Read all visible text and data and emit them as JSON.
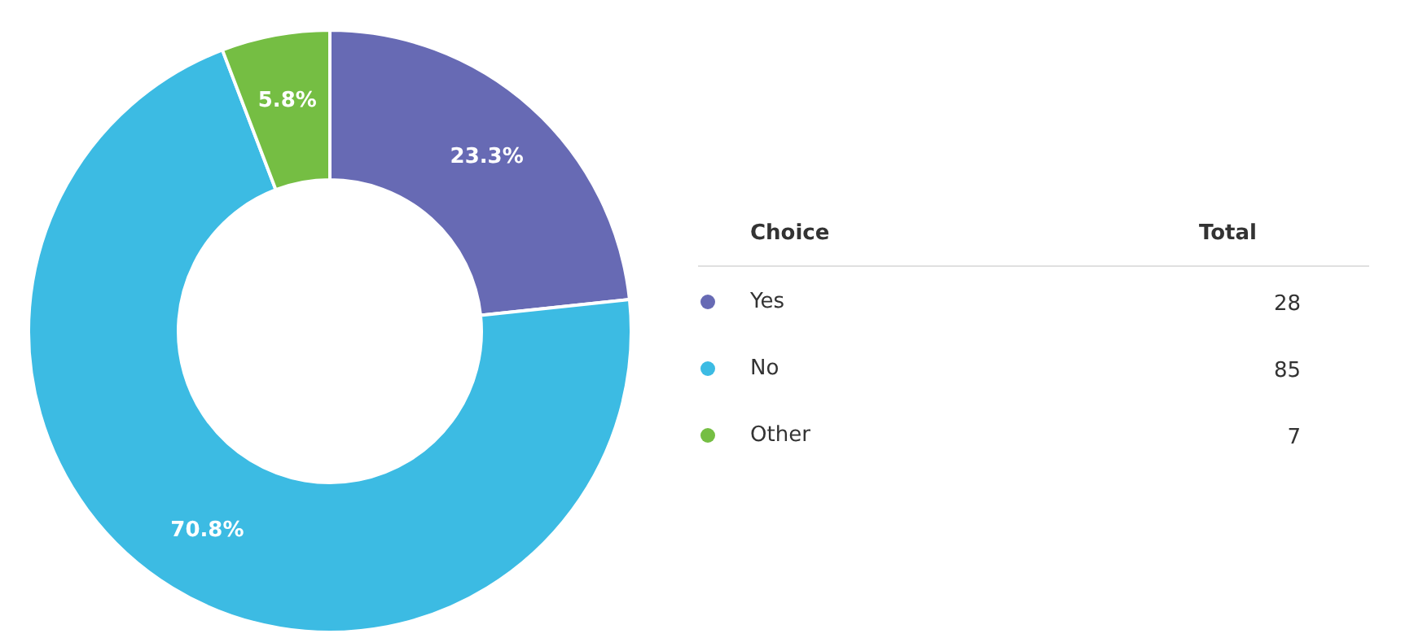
{
  "chart_data": {
    "type": "donut",
    "categories": [
      "Yes",
      "No",
      "Other"
    ],
    "values": [
      23.3,
      70.8,
      5.8
    ],
    "colors": [
      "#676ab4",
      "#3cbbe3",
      "#75be43"
    ],
    "value_labels": [
      "23.3%",
      "70.8%",
      "5.8%"
    ],
    "totals": [
      "28",
      "85",
      "7"
    ],
    "legend": "right",
    "legend_title": "Choice",
    "annotations": [
      "Total"
    ]
  }
}
